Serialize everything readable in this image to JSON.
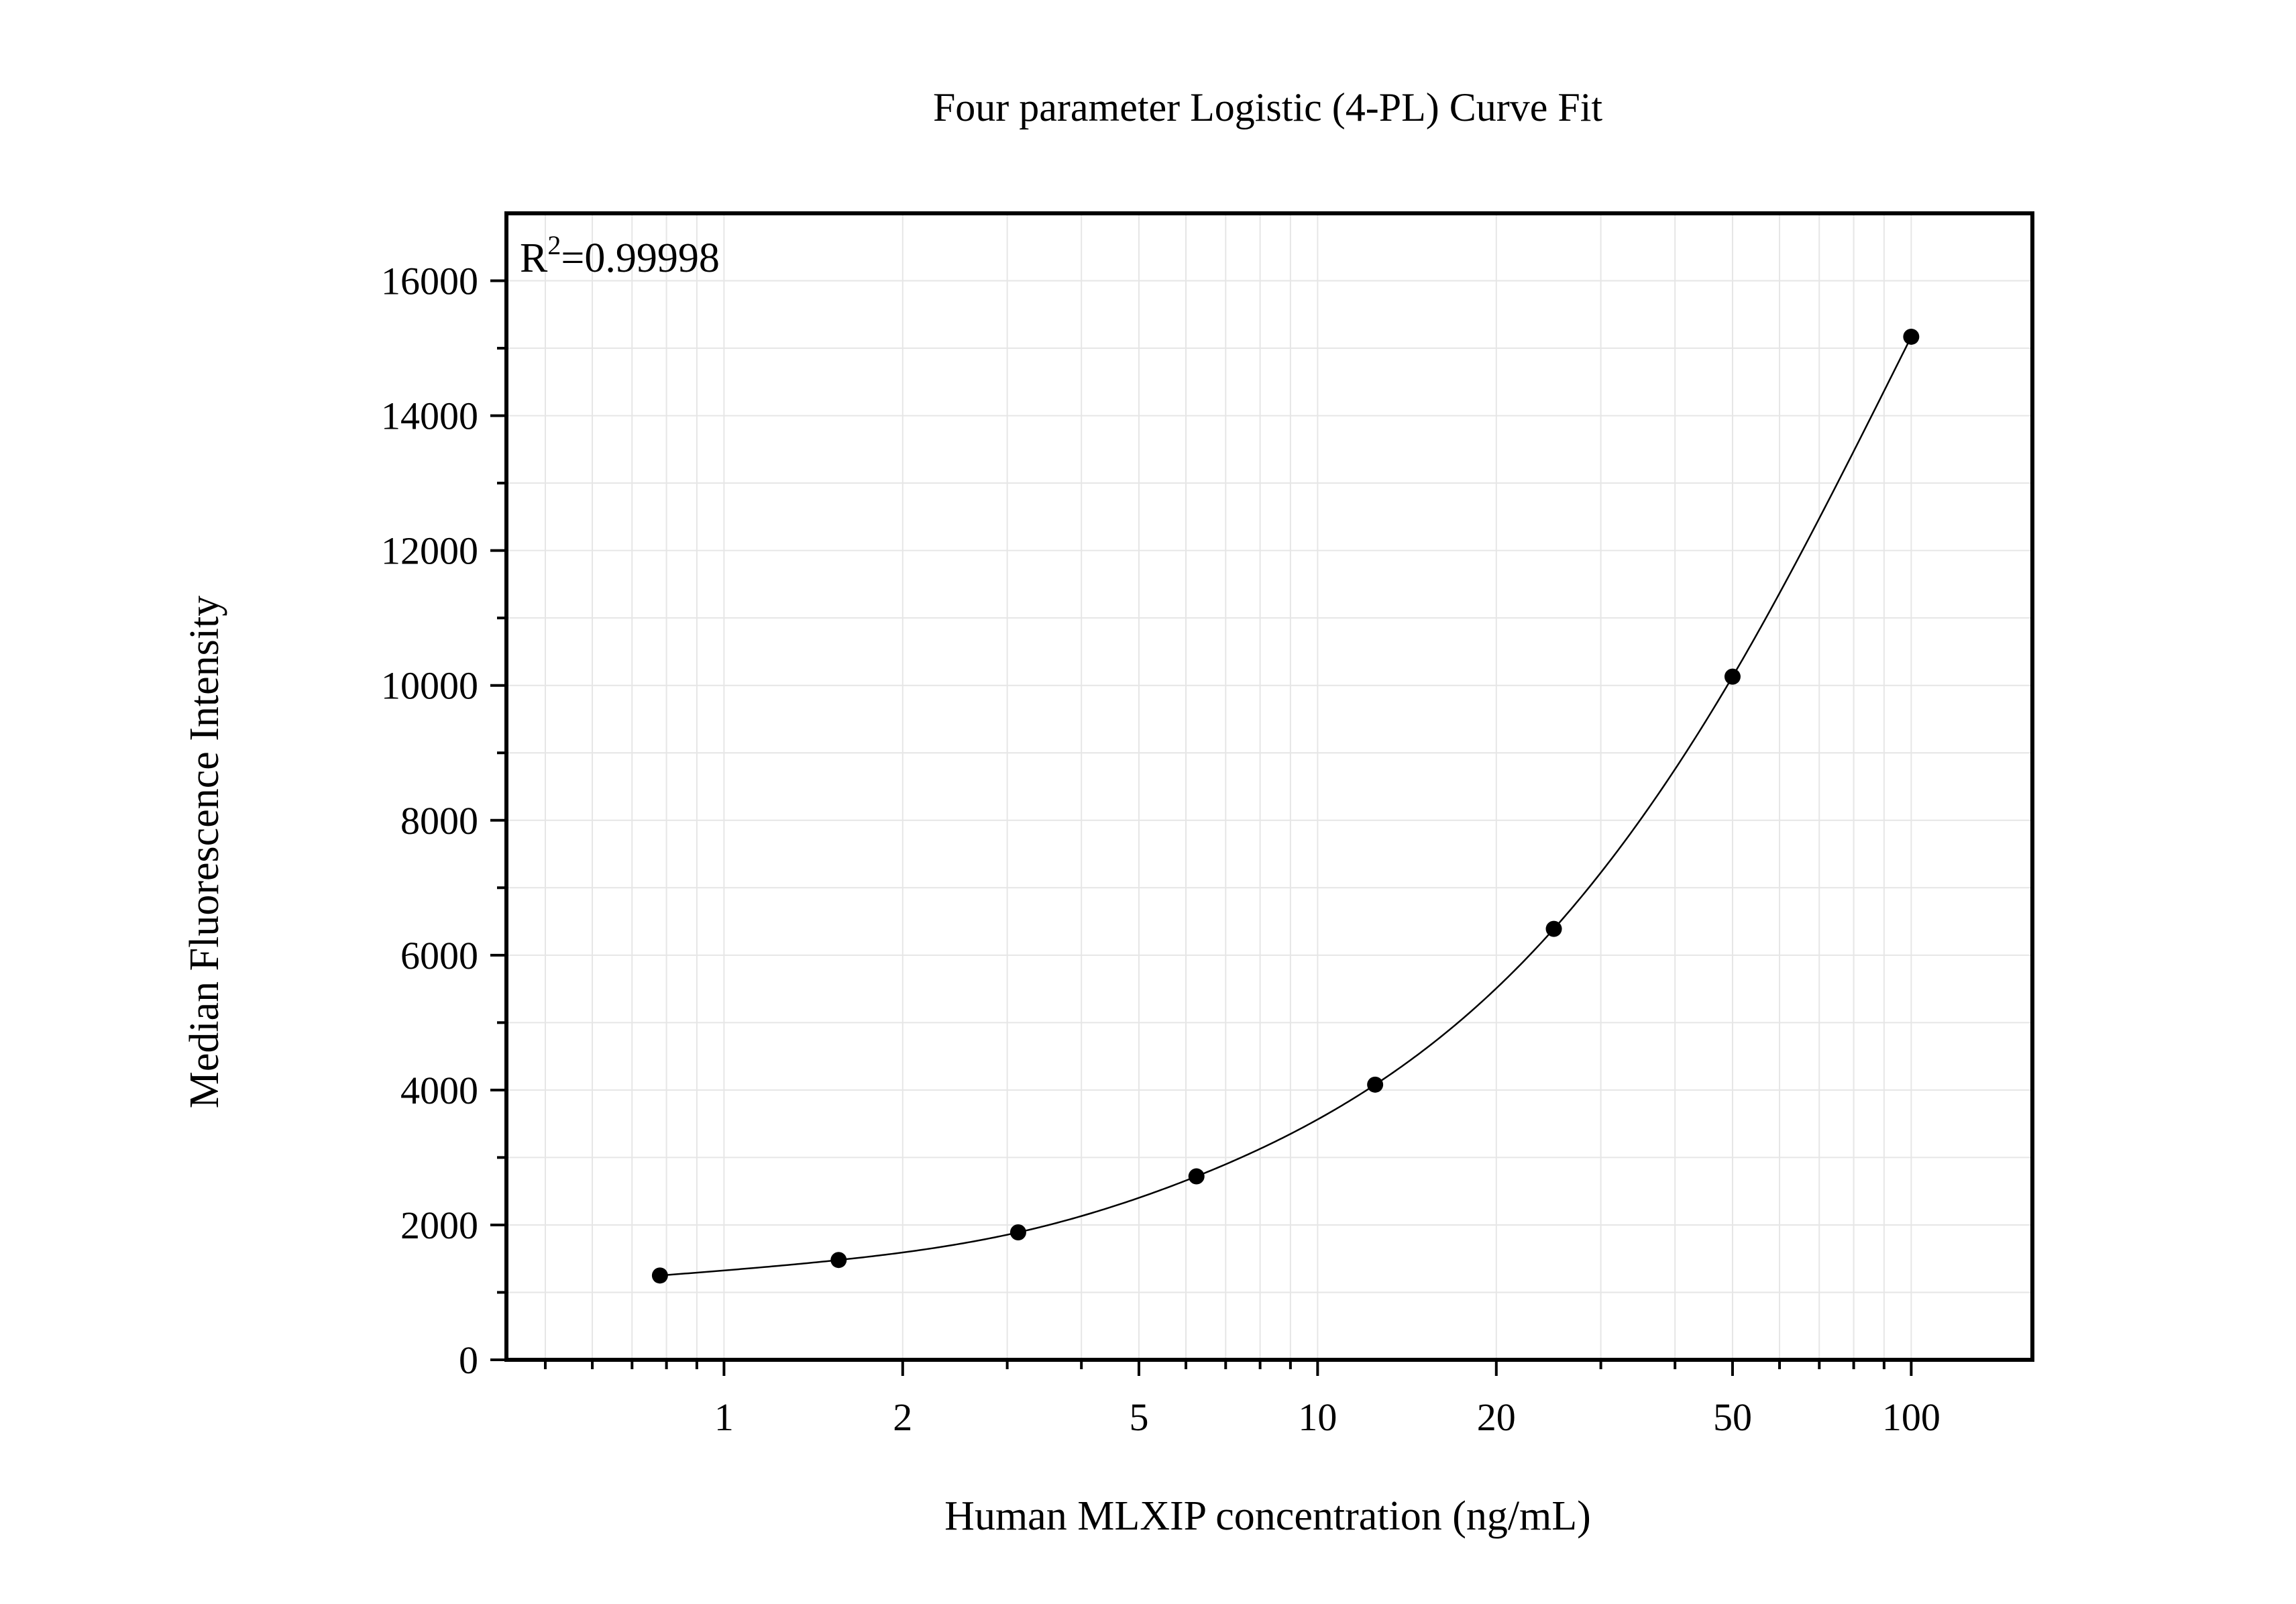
{
  "chart_data": {
    "type": "scatter",
    "title": "Four parameter Logistic (4-PL) Curve Fit",
    "xlabel": "Human MLXIP concentration (ng/mL)",
    "ylabel": "Median Fluorescence Intensity",
    "x_scale": "log",
    "xlim": [
      0.43,
      160
    ],
    "ylim": [
      0,
      17000
    ],
    "x_ticks": [
      1,
      2,
      5,
      10,
      20,
      50,
      100
    ],
    "x_tick_labels": [
      "1",
      "2",
      "5",
      "10",
      "20",
      "50",
      "100"
    ],
    "y_ticks": [
      0,
      2000,
      4000,
      6000,
      8000,
      10000,
      12000,
      14000,
      16000
    ],
    "y_tick_labels": [
      "0",
      "2000",
      "4000",
      "6000",
      "8000",
      "10000",
      "12000",
      "14000",
      "16000"
    ],
    "grid": true,
    "annotation": {
      "base": "R",
      "sup": "2",
      "rest": "=0.99998"
    },
    "series": [
      {
        "points": [
          {
            "x": 0.78,
            "y": 1250
          },
          {
            "x": 1.56,
            "y": 1480
          },
          {
            "x": 3.13,
            "y": 1890
          },
          {
            "x": 6.25,
            "y": 2720
          },
          {
            "x": 12.5,
            "y": 4080
          },
          {
            "x": 25,
            "y": 6390
          },
          {
            "x": 50,
            "y": 10130
          },
          {
            "x": 100,
            "y": 15170
          }
        ],
        "fit_curve": {
          "model": "4-PL",
          "x_range": [
            0.78,
            100
          ]
        }
      }
    ],
    "colors": {
      "points": "#000000",
      "curve": "#000000",
      "grid": "#e6e6e6",
      "frame": "#000000"
    }
  }
}
